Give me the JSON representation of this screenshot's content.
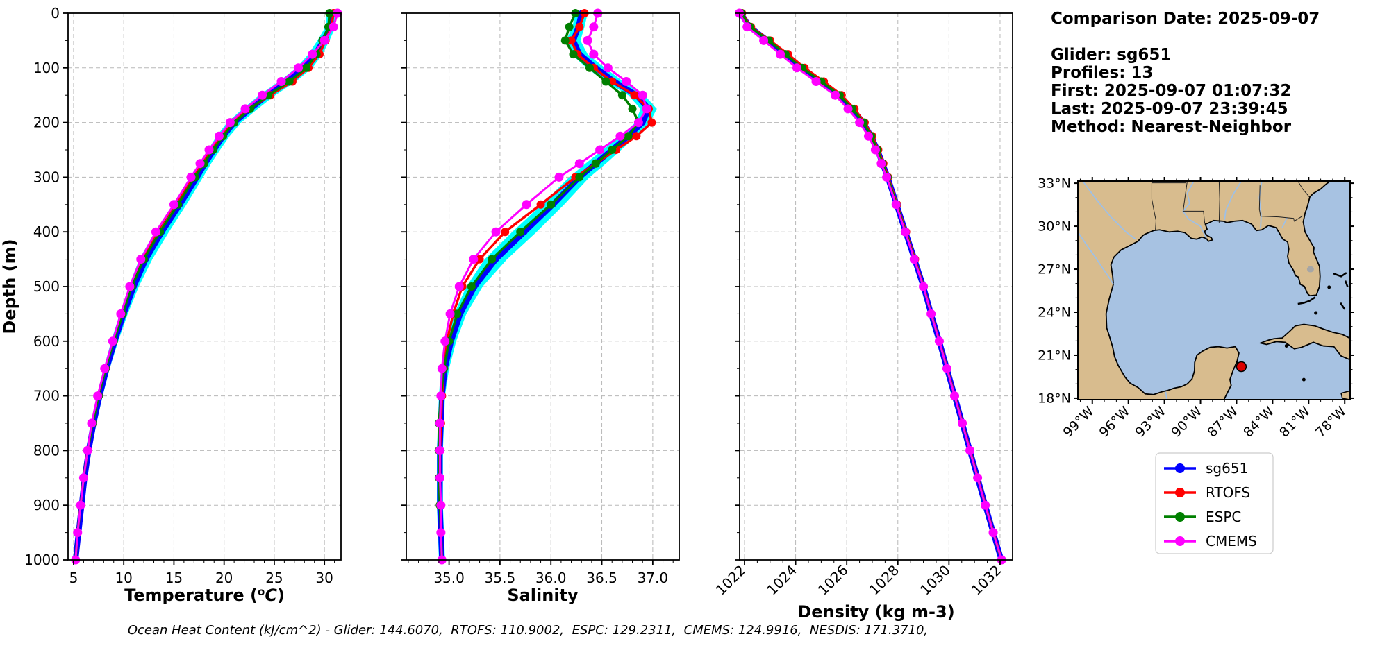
{
  "info_panel": {
    "lines": [
      "Comparison Date: 2025-09-07",
      "",
      "Glider: sg651",
      "Profiles: 13",
      "First: 2025-09-07 01:07:32",
      "Last: 2025-09-07 23:39:45",
      "Method: Nearest-Neighbor"
    ]
  },
  "footer": {
    "text": "Ocean Heat Content (kJ/cm^2) - Glider: 144.6070,  RTOFS: 110.9002,  ESPC: 129.2311,  CMEMS: 124.9916,  NESDIS: 171.3710,"
  },
  "legend": {
    "entries": [
      {
        "label": "sg651",
        "color": "#0000ff"
      },
      {
        "label": "RTOFS",
        "color": "#ff0000"
      },
      {
        "label": "ESPC",
        "color": "#008000"
      },
      {
        "label": "CMEMS",
        "color": "#ff00ff"
      }
    ]
  },
  "colors": {
    "grid": "#b8b8b8",
    "band": "#00ffff",
    "spine": "#000000"
  },
  "chart_data": [
    {
      "name": "temperature",
      "type": "line",
      "title": "",
      "xlabel": "Temperature (°C)",
      "xlabel_superscript_c": true,
      "ylabel": "Depth (m)",
      "xlim": [
        4.45,
        31.65
      ],
      "ylim": [
        1000,
        0
      ],
      "xticks": [
        5,
        10,
        15,
        20,
        25,
        30
      ],
      "xtick_labels": [
        "5",
        "10",
        "15",
        "20",
        "25",
        "30"
      ],
      "xminor": 1,
      "rotate_xticklabels": false,
      "yticks": [
        0,
        100,
        200,
        300,
        400,
        500,
        600,
        700,
        800,
        900,
        1000
      ],
      "yminor": 50,
      "grid": true,
      "depths": [
        0,
        25,
        50,
        75,
        100,
        125,
        150,
        175,
        200,
        225,
        250,
        275,
        300,
        350,
        400,
        450,
        500,
        550,
        600,
        650,
        700,
        750,
        800,
        850,
        900,
        950,
        1000
      ],
      "band": {
        "color": "#00ffff",
        "half_width": [
          0.45,
          0.5,
          0.6,
          0.7,
          0.8,
          0.85,
          0.8,
          0.75,
          0.7,
          0.65,
          0.6,
          0.6,
          0.6,
          0.65,
          0.7,
          0.65,
          0.5,
          0.4,
          0.35,
          0.3,
          0.3,
          0.28,
          0.25,
          0.22,
          0.2,
          0.18,
          0.15
        ]
      },
      "series": [
        {
          "name": "sg651",
          "color": "#0000ff",
          "values": [
            30.7,
            30.6,
            29.9,
            29.1,
            28.0,
            26.3,
            24.3,
            22.6,
            21.0,
            19.9,
            19.0,
            18.1,
            17.3,
            15.6,
            13.8,
            12.2,
            11.0,
            10.0,
            9.1,
            8.3,
            7.6,
            7.0,
            6.5,
            6.1,
            5.8,
            5.5,
            5.2
          ]
        },
        {
          "name": "RTOFS",
          "color": "#ff0000",
          "values": [
            30.9,
            30.7,
            30.1,
            29.5,
            28.4,
            26.8,
            24.6,
            22.5,
            20.8,
            19.7,
            18.7,
            17.8,
            16.9,
            15.1,
            13.3,
            11.8,
            10.7,
            9.8,
            9.0,
            8.2,
            7.5,
            6.9,
            6.4,
            6.0,
            5.7,
            5.4,
            5.2
          ]
        },
        {
          "name": "ESPC",
          "color": "#008000",
          "values": [
            30.5,
            30.4,
            29.8,
            29.2,
            28.2,
            26.5,
            24.4,
            22.6,
            21.0,
            19.9,
            18.9,
            18.0,
            17.1,
            15.4,
            13.6,
            12.0,
            10.8,
            9.9,
            9.0,
            8.2,
            7.5,
            6.9,
            6.4,
            6.0,
            5.7,
            5.4,
            5.2
          ]
        },
        {
          "name": "CMEMS",
          "color": "#ff00ff",
          "values": [
            31.3,
            30.9,
            30.0,
            28.8,
            27.4,
            25.7,
            23.8,
            22.1,
            20.6,
            19.5,
            18.5,
            17.6,
            16.7,
            15.0,
            13.2,
            11.7,
            10.6,
            9.7,
            8.9,
            8.1,
            7.4,
            6.8,
            6.4,
            6.0,
            5.7,
            5.4,
            5.2
          ]
        }
      ]
    },
    {
      "name": "salinity",
      "type": "line",
      "title": "",
      "xlabel": "Salinity",
      "xlabel_superscript_c": false,
      "ylabel": "",
      "xlim": [
        34.58,
        37.26
      ],
      "ylim": [
        1000,
        0
      ],
      "xticks": [
        35.0,
        35.5,
        36.0,
        36.5,
        37.0
      ],
      "xtick_labels": [
        "35.0",
        "35.5",
        "36.0",
        "36.5",
        "37.0"
      ],
      "xminor": 0.1,
      "rotate_xticklabels": false,
      "yticks": [
        0,
        100,
        200,
        300,
        400,
        500,
        600,
        700,
        800,
        900,
        1000
      ],
      "yminor": 50,
      "grid": true,
      "depths": [
        0,
        25,
        50,
        75,
        100,
        125,
        150,
        175,
        200,
        225,
        250,
        275,
        300,
        350,
        400,
        450,
        500,
        550,
        600,
        650,
        700,
        750,
        800,
        850,
        900,
        950,
        1000
      ],
      "band": {
        "color": "#00ffff",
        "half_width": [
          0.06,
          0.06,
          0.07,
          0.08,
          0.09,
          0.09,
          0.08,
          0.08,
          0.07,
          0.08,
          0.09,
          0.1,
          0.1,
          0.11,
          0.12,
          0.11,
          0.08,
          0.06,
          0.05,
          0.04,
          0.03,
          0.03,
          0.03,
          0.03,
          0.03,
          0.03,
          0.03
        ]
      },
      "series": [
        {
          "name": "sg651",
          "color": "#0000ff",
          "values": [
            36.3,
            36.27,
            36.22,
            36.28,
            36.44,
            36.62,
            36.84,
            36.96,
            36.9,
            36.76,
            36.6,
            36.44,
            36.28,
            36.02,
            35.74,
            35.46,
            35.25,
            35.11,
            35.02,
            34.96,
            34.93,
            34.92,
            34.91,
            34.91,
            34.91,
            34.92,
            34.93
          ]
        },
        {
          "name": "RTOFS",
          "color": "#ff0000",
          "values": [
            36.33,
            36.28,
            36.2,
            36.26,
            36.42,
            36.6,
            36.82,
            36.96,
            36.99,
            36.84,
            36.64,
            36.44,
            36.24,
            35.9,
            35.55,
            35.3,
            35.13,
            35.04,
            34.98,
            34.95,
            34.93,
            34.92,
            34.91,
            34.91,
            34.91,
            34.92,
            34.93
          ]
        },
        {
          "name": "ESPC",
          "color": "#008000",
          "values": [
            36.24,
            36.18,
            36.14,
            36.22,
            36.38,
            36.54,
            36.7,
            36.8,
            36.86,
            36.76,
            36.6,
            36.44,
            36.28,
            36.0,
            35.7,
            35.42,
            35.22,
            35.08,
            35.0,
            34.95,
            34.92,
            34.9,
            34.9,
            34.9,
            34.91,
            34.92,
            34.93
          ]
        },
        {
          "name": "CMEMS",
          "color": "#ff00ff",
          "values": [
            36.46,
            36.42,
            36.36,
            36.42,
            36.56,
            36.74,
            36.9,
            36.94,
            36.86,
            36.68,
            36.48,
            36.28,
            36.08,
            35.76,
            35.46,
            35.24,
            35.1,
            35.01,
            34.96,
            34.93,
            34.92,
            34.91,
            34.91,
            34.91,
            34.92,
            34.92,
            34.93
          ]
        }
      ]
    },
    {
      "name": "density",
      "type": "line",
      "title": "",
      "xlabel": "Density (kg m-3)",
      "xlabel_superscript_c": false,
      "ylabel": "",
      "xlim": [
        1021.81,
        1032.49
      ],
      "ylim": [
        1000,
        0
      ],
      "xticks": [
        1022,
        1024,
        1026,
        1028,
        1030,
        1032
      ],
      "xtick_labels": [
        "1022",
        "1024",
        "1026",
        "1028",
        "1030",
        "1032"
      ],
      "xminor": 0.5,
      "rotate_xticklabels": true,
      "yticks": [
        0,
        100,
        200,
        300,
        400,
        500,
        600,
        700,
        800,
        900,
        1000
      ],
      "yminor": 50,
      "grid": true,
      "depths": [
        0,
        25,
        50,
        75,
        100,
        125,
        150,
        175,
        200,
        225,
        250,
        275,
        300,
        350,
        400,
        450,
        500,
        550,
        600,
        650,
        700,
        750,
        800,
        850,
        900,
        950,
        1000
      ],
      "band": {
        "color": "#00ffff",
        "half_width": [
          0.12,
          0.12,
          0.14,
          0.15,
          0.16,
          0.15,
          0.14,
          0.12,
          0.1,
          0.1,
          0.09,
          0.09,
          0.08,
          0.08,
          0.08,
          0.08,
          0.06,
          0.05,
          0.05,
          0.05,
          0.05,
          0.05,
          0.05,
          0.05,
          0.05,
          0.05,
          0.05
        ]
      },
      "series": [
        {
          "name": "sg651",
          "color": "#0000ff",
          "values": [
            1021.85,
            1022.2,
            1022.9,
            1023.55,
            1024.2,
            1024.95,
            1025.7,
            1026.2,
            1026.65,
            1026.95,
            1027.2,
            1027.4,
            1027.6,
            1027.95,
            1028.3,
            1028.65,
            1029.0,
            1029.3,
            1029.62,
            1029.92,
            1030.22,
            1030.52,
            1030.82,
            1031.12,
            1031.42,
            1031.73,
            1032.05
          ]
        },
        {
          "name": "RTOFS",
          "color": "#ff0000",
          "values": [
            1021.9,
            1022.25,
            1023.0,
            1023.7,
            1024.35,
            1025.1,
            1025.8,
            1026.3,
            1026.7,
            1027.0,
            1027.23,
            1027.43,
            1027.62,
            1027.97,
            1028.32,
            1028.67,
            1029.01,
            1029.31,
            1029.63,
            1029.93,
            1030.23,
            1030.53,
            1030.83,
            1031.13,
            1031.43,
            1031.74,
            1032.06
          ]
        },
        {
          "name": "ESPC",
          "color": "#008000",
          "values": [
            1021.88,
            1022.22,
            1022.95,
            1023.6,
            1024.25,
            1025.0,
            1025.72,
            1026.22,
            1026.66,
            1026.96,
            1027.2,
            1027.4,
            1027.6,
            1027.95,
            1028.3,
            1028.65,
            1029.0,
            1029.3,
            1029.62,
            1029.92,
            1030.22,
            1030.52,
            1030.82,
            1031.12,
            1031.42,
            1031.73,
            1032.05
          ]
        },
        {
          "name": "CMEMS",
          "color": "#ff00ff",
          "values": [
            1021.8,
            1022.1,
            1022.75,
            1023.4,
            1024.05,
            1024.8,
            1025.55,
            1026.05,
            1026.5,
            1026.85,
            1027.12,
            1027.35,
            1027.56,
            1027.93,
            1028.29,
            1028.64,
            1029.0,
            1029.3,
            1029.62,
            1029.92,
            1030.22,
            1030.52,
            1030.82,
            1031.12,
            1031.42,
            1031.73,
            1032.06
          ]
        }
      ]
    }
  ],
  "map": {
    "extent": {
      "lon_min": -100.2,
      "lon_max": -77.55,
      "lat_min": 17.9,
      "lat_max": 33.15
    },
    "lon_tick_values": [
      -99,
      -96,
      -93,
      -90,
      -87,
      -84,
      -81,
      -78
    ],
    "lon_tick_labels": [
      "99°W",
      "96°W",
      "93°W",
      "90°W",
      "87°W",
      "84°W",
      "81°W",
      "78°W"
    ],
    "lat_tick_values": [
      33,
      30,
      27,
      24,
      21,
      18
    ],
    "lat_tick_labels": [
      "33°N",
      "30°N",
      "27°N",
      "24°N",
      "21°N",
      "18°N"
    ],
    "land_color": "#d8bc8e",
    "ocean_color": "#a7c2e2",
    "coast_color": "#000000",
    "river_color": "#9fc0e6",
    "marker": {
      "lon": -86.6,
      "lat": 20.2,
      "color": "#dd0000"
    }
  }
}
